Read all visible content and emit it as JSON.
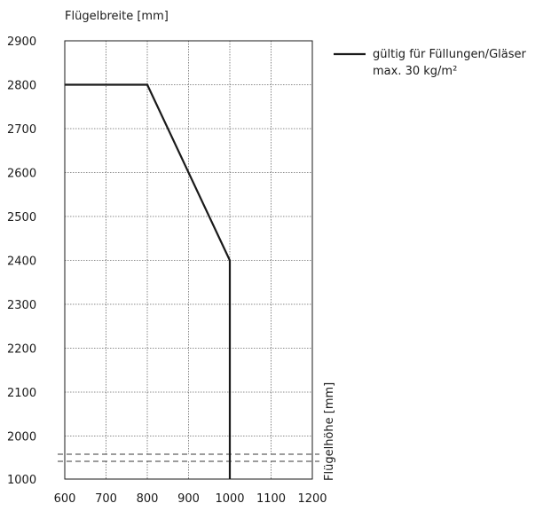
{
  "chart_data": {
    "type": "line",
    "title": "",
    "xlabel": "Flügelhöhe [mm]",
    "ylabel": "Flügelbreite [mm]",
    "x_ticks": [
      600,
      700,
      800,
      900,
      1000,
      1100,
      1200
    ],
    "x_tick_labels": [
      "600",
      "700",
      "800",
      "900",
      "1000",
      "1100",
      "1200"
    ],
    "y_ticks": [
      2000,
      2100,
      2200,
      2300,
      2400,
      2500,
      2600,
      2700,
      2800,
      2900
    ],
    "y_tick_labels": [
      "2000",
      "2100",
      "2200",
      "2300",
      "2400",
      "2500",
      "2600",
      "2700",
      "2800",
      "2900"
    ],
    "y_bottom_label": "1000",
    "xlim": [
      600,
      1200
    ],
    "ylim": [
      1000,
      2900
    ],
    "axis_break": true,
    "grid": true,
    "legend_position": "top-right",
    "series": [
      {
        "name": "gültig für Füllungen/Gläser max. 30 kg/m²",
        "name_lines": [
          "gültig für Füllungen/Gläser",
          "max. 30 kg/m²"
        ],
        "color": "#1a1a1a",
        "points": [
          [
            600,
            2800
          ],
          [
            800,
            2800
          ],
          [
            1000,
            2400
          ],
          [
            1000,
            1000
          ]
        ]
      }
    ]
  }
}
